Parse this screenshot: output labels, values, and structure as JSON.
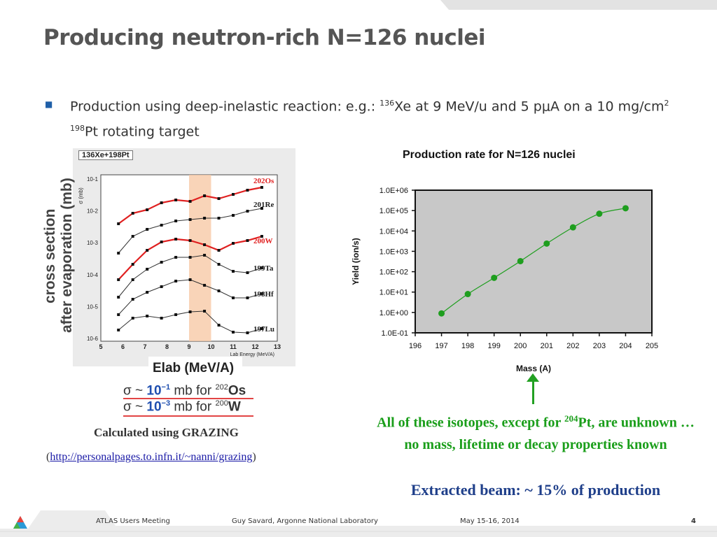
{
  "slide": {
    "title": "Producing neutron-rich N=126 nuclei",
    "bullet": {
      "prefix": "Production using deep-inelastic reaction: e.g.: ",
      "sup1": "136",
      "mid": "Xe at 9 MeV/u and 5 pμA on a 10 mg/cm",
      "sup2": "2",
      "sup3": "198",
      "suffix": "Pt rotating target"
    }
  },
  "left_figure": {
    "header": "136Xe+198Pt",
    "ylabel_line1": "cross section",
    "ylabel_line2": "after evaporation (mb)",
    "inner_ylabel": "σ (mb)",
    "y_ticks": [
      "10-1",
      "10-2",
      "10-3",
      "10-4",
      "10-5",
      "10-6"
    ],
    "x_ticks": [
      "5",
      "6",
      "7",
      "8",
      "9",
      "10",
      "11",
      "12",
      "13"
    ],
    "inner_xlabel": "Lab Energy (MeV/A)",
    "nuclei": [
      "202Os",
      "201Re",
      "200W",
      "199Ta",
      "198Hf",
      "197Lu"
    ],
    "elab_label": "Elab (MeV/A)",
    "sigma1": {
      "pre": "σ ~ ",
      "num": "10",
      "exp": "−1",
      "mid": " mb for ",
      "sup": "202",
      "nuc": "Os"
    },
    "sigma2": {
      "pre": "σ ~ ",
      "num": "10",
      "exp": "−3",
      "mid": " mb for ",
      "sup": "200",
      "nuc": "W"
    },
    "caption": "Calculated using GRAZING",
    "link_open": "(",
    "link_text": "http://personalpages.to.infn.it/~nanni/grazing",
    "link_close": ")"
  },
  "chart_data": {
    "type": "scatter",
    "title": "Production rate for N=126 nuclei",
    "xlabel": "Mass (A)",
    "ylabel": "Yield (ion/s)",
    "y_scale": "log",
    "xlim": [
      196,
      205
    ],
    "ylim": [
      0.1,
      1000000
    ],
    "x_ticks": [
      "196",
      "197",
      "198",
      "199",
      "200",
      "201",
      "202",
      "203",
      "204",
      "205"
    ],
    "y_ticks": [
      "1.0E-01",
      "1.0E+00",
      "1.0E+01",
      "1.0E+02",
      "1.0E+03",
      "1.0E+04",
      "1.0E+05",
      "1.0E+06"
    ],
    "x": [
      197,
      198,
      199,
      200,
      201,
      202,
      203,
      204
    ],
    "values": [
      0.9,
      8,
      50,
      330,
      2400,
      15000,
      70000,
      130000
    ],
    "marker_color": "#1e9e1e",
    "line_color": "#1e9e1e",
    "plot_bg": "#c8c8c8"
  },
  "notes": {
    "green_pre": "All of these isotopes, except for ",
    "green_sup": "204",
    "green_post": "Pt, are unknown … no mass, lifetime or decay properties known",
    "blue": "Extracted beam: ~ 15% of production"
  },
  "footer": {
    "event": "ATLAS Users Meeting",
    "author": "Guy Savard, Argonne National Laboratory",
    "date": "May 15-16, 2014",
    "page": "4"
  }
}
